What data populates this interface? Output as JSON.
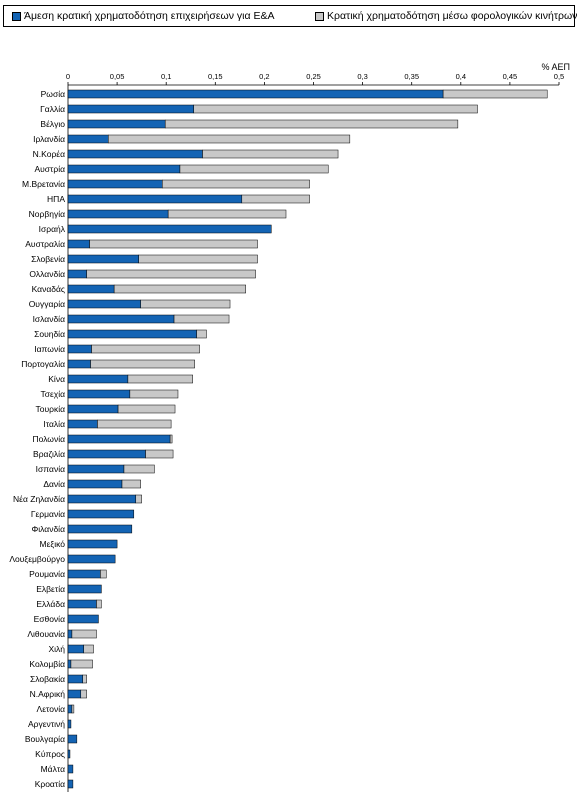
{
  "chart_data": {
    "type": "bar",
    "orientation": "horizontal",
    "stacked": true,
    "unit_label": "% ΑΕΠ",
    "xlim": [
      0,
      0.5
    ],
    "xticks": [
      "0",
      "0,05",
      "0,1",
      "0,15",
      "0,2",
      "0,25",
      "0,3",
      "0,35",
      "0,4",
      "0,45",
      "0,5"
    ],
    "grid": false,
    "legend_position": "top",
    "categories": [
      "Ρωσία",
      "Γαλλία",
      "Βέλγιο",
      "Ιρλανδία",
      "Ν.Κορέα",
      "Αυστρία",
      "Μ.Βρετανία",
      "ΗΠΑ",
      "Νορβηγία",
      "Ισραήλ",
      "Αυστραλία",
      "Σλοβενία",
      "Ολλανδία",
      "Καναδάς",
      "Ουγγαρία",
      "Ισλανδία",
      "Σουηδία",
      "Ιαπωνία",
      "Πορτογαλία",
      "Κίνα",
      "Τσεχία",
      "Τουρκία",
      "Ιταλία",
      "Πολωνία",
      "Βραζιλία",
      "Ισπανία",
      "Δανία",
      "Νέα Ζηλανδία",
      "Γερμανία",
      "Φιλανδία",
      "Μεξικό",
      "Λουξεμβούργο",
      "Ρουμανία",
      "Ελβετία",
      "Ελλάδα",
      "Εσθονία",
      "Λιθουανία",
      "Χιλή",
      "Κολομβία",
      "Σλοβακία",
      "Ν.Αφρική",
      "Λετονία",
      "Αργεντινή",
      "Βουλγαρία",
      "Κύπρος",
      "Μάλτα",
      "Κροατία"
    ],
    "series": [
      {
        "name": "Άμεση κρατική χρηματοδότηση επιχειρήσεων για Ε&Α",
        "color": "#1464b4",
        "values": [
          0.382,
          0.128,
          0.099,
          0.041,
          0.137,
          0.114,
          0.096,
          0.177,
          0.102,
          0.207,
          0.022,
          0.072,
          0.019,
          0.047,
          0.074,
          0.108,
          0.131,
          0.024,
          0.023,
          0.061,
          0.063,
          0.051,
          0.03,
          0.104,
          0.079,
          0.057,
          0.055,
          0.069,
          0.067,
          0.065,
          0.05,
          0.048,
          0.033,
          0.034,
          0.029,
          0.031,
          0.004,
          0.016,
          0.003,
          0.015,
          0.013,
          0.004,
          0.003,
          0.009,
          0.002,
          0.005,
          0.005
        ]
      },
      {
        "name": "Κρατική χρηματοδότηση μέσω φορολογικών κινήτρων",
        "color": "#c8c8c8",
        "values": [
          0.106,
          0.289,
          0.298,
          0.246,
          0.138,
          0.151,
          0.15,
          0.069,
          0.12,
          0,
          0.171,
          0.121,
          0.172,
          0.134,
          0.091,
          0.056,
          0.01,
          0.11,
          0.106,
          0.066,
          0.049,
          0.058,
          0.075,
          0.002,
          0.028,
          0.031,
          0.019,
          0.006,
          0,
          0,
          0,
          0,
          0.006,
          0,
          0.005,
          0,
          0.025,
          0.01,
          0.022,
          0.004,
          0.006,
          0.002,
          0,
          0,
          0,
          0,
          0
        ]
      }
    ]
  }
}
